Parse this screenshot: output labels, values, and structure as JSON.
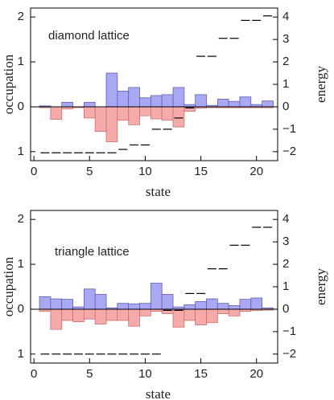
{
  "chart_data": [
    {
      "type": "bar",
      "annotation": "diamond lattice",
      "xlabel": "state",
      "ylabel": "occupation",
      "y2label": "energy",
      "x": [
        1,
        2,
        3,
        4,
        5,
        6,
        7,
        8,
        9,
        10,
        11,
        12,
        13,
        14,
        15,
        16,
        17,
        18,
        19,
        20,
        21
      ],
      "xlim": [
        -0.3,
        21.9
      ],
      "xticks": [
        0,
        5,
        10,
        15,
        20
      ],
      "ylim": [
        -1.2,
        2.2
      ],
      "yticks": [
        {
          "value": -1,
          "label": "1"
        },
        0,
        1,
        2
      ],
      "y2lim": [
        -2.4,
        4.4
      ],
      "y2ticks": [
        {
          "value": -2,
          "label": "−2"
        },
        {
          "value": -1,
          "label": "−1"
        },
        0,
        1,
        2,
        3,
        4
      ],
      "series": [
        {
          "kind": "bar",
          "color": "#a8a8f4",
          "values": [
            0.02,
            0,
            0.1,
            0,
            0.1,
            0,
            0.75,
            0.35,
            0.43,
            0.2,
            0.25,
            0.27,
            0.43,
            0.05,
            0.27,
            0.03,
            0.17,
            0.12,
            0.22,
            0.05,
            0.13
          ]
        },
        {
          "kind": "bar",
          "color": "#f6aaaa",
          "values": [
            -0.02,
            -0.28,
            -0.05,
            -0.02,
            -0.25,
            -0.55,
            -0.78,
            -0.3,
            -0.4,
            -0.2,
            -0.27,
            -0.3,
            -0.45,
            -0.1,
            -0.03,
            -0.02,
            -0.02,
            -0.02,
            -0.02,
            -0.02,
            -0.02
          ]
        },
        {
          "kind": "level",
          "axis": "y2",
          "color": "#000000",
          "values": [
            -2.05,
            -2.05,
            -2.05,
            -2.05,
            -2.05,
            -2.05,
            -2.05,
            -1.9,
            -1.7,
            -1.7,
            -1.0,
            -1.0,
            -0.5,
            -0.05,
            2.25,
            2.25,
            3.05,
            3.05,
            3.85,
            3.85,
            4.05
          ]
        }
      ]
    },
    {
      "type": "bar",
      "annotation": "triangle lattice",
      "xlabel": "state",
      "ylabel": "occupation",
      "y2label": "energy",
      "x": [
        1,
        2,
        3,
        4,
        5,
        6,
        7,
        8,
        9,
        10,
        11,
        12,
        13,
        14,
        15,
        16,
        17,
        18,
        19,
        20,
        21
      ],
      "xlim": [
        -0.3,
        21.9
      ],
      "xticks": [
        0,
        5,
        10,
        15,
        20
      ],
      "ylim": [
        -1.2,
        2.2
      ],
      "yticks": [
        {
          "value": -1,
          "label": "1"
        },
        0,
        1,
        2
      ],
      "y2lim": [
        -2.4,
        4.4
      ],
      "y2ticks": [
        {
          "value": -2,
          "label": "−2"
        },
        {
          "value": -1,
          "label": "−1"
        },
        0,
        1,
        2,
        3,
        4
      ],
      "series": [
        {
          "kind": "bar",
          "color": "#a8a8f4",
          "values": [
            0.28,
            0.23,
            0.22,
            0.05,
            0.45,
            0.33,
            0.03,
            0.13,
            0.12,
            0.13,
            0.58,
            0.33,
            0.05,
            0.1,
            0.17,
            0.23,
            0.13,
            0.08,
            0.22,
            0.25,
            0.03
          ]
        },
        {
          "kind": "bar",
          "color": "#f6aaaa",
          "values": [
            -0.05,
            -0.45,
            -0.25,
            -0.28,
            -0.22,
            -0.33,
            -0.25,
            -0.25,
            -0.38,
            -0.15,
            -0.05,
            -0.1,
            -0.4,
            -0.25,
            -0.35,
            -0.3,
            -0.1,
            -0.15,
            -0.05,
            -0.03,
            -0.02
          ]
        },
        {
          "kind": "level",
          "axis": "y2",
          "color": "#000000",
          "values": [
            -2,
            -2,
            -2,
            -2,
            -2,
            -2,
            -2,
            -2,
            -2,
            -2,
            -2,
            -0.05,
            -0.05,
            0.7,
            0.7,
            1.8,
            1.8,
            2.85,
            2.85,
            3.65,
            3.65
          ]
        }
      ]
    }
  ]
}
